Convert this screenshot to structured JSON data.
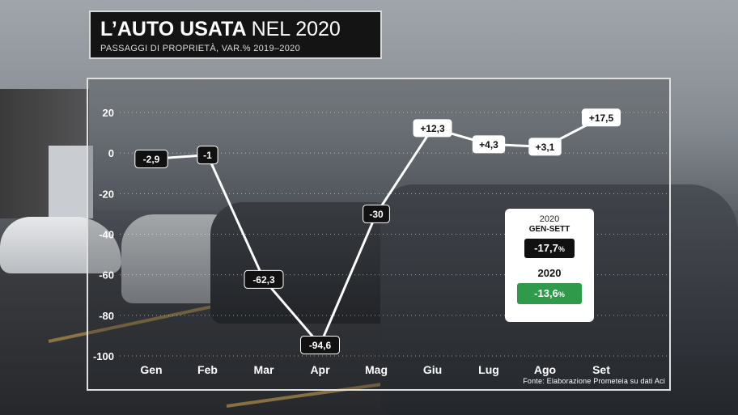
{
  "title": {
    "bold": "L’AUTO USATA",
    "light": "NEL 2020"
  },
  "subtitle": "PASSAGGI DI PROPRIETÀ, VAR.% 2019–2020",
  "source": "Fonte: Elaborazione Prometeia su dati Aci",
  "chart_data": {
    "type": "line",
    "categories": [
      "Gen",
      "Feb",
      "Mar",
      "Apr",
      "Mag",
      "Giu",
      "Lug",
      "Ago",
      "Set"
    ],
    "values": [
      -2.9,
      -1,
      -62.3,
      -94.6,
      -30,
      12.3,
      4.3,
      3.1,
      17.5
    ],
    "data_labels": [
      "-2,9",
      "-1",
      "-62,3",
      "-94,6",
      "-30",
      "+12,3",
      "+4,3",
      "+3,1",
      "+17,5"
    ],
    "label_styles": [
      "dark",
      "dark",
      "dark",
      "dark",
      "dark",
      "light",
      "light",
      "light",
      "light"
    ],
    "ylim": [
      -100,
      20
    ],
    "yticks": [
      20,
      0,
      -20,
      -40,
      -60,
      -80,
      -100
    ],
    "ytick_labels": [
      "20",
      "0",
      "-20",
      "-40",
      "-60",
      "-80",
      "-100"
    ],
    "grid": true,
    "xlabel": "",
    "ylabel": ""
  },
  "summary": {
    "year_1": "2020",
    "period": "GEN-SETT",
    "value_1": "-17,7",
    "value_1_unit": "%",
    "year_2": "2020",
    "value_2": "-13,6",
    "value_2_unit": "%"
  },
  "colors": {
    "line": "#ffffff",
    "label_dark_bg": "#111111",
    "label_light_bg": "#ffffff",
    "summary_green": "#2f9a4a",
    "title_bg": "#141414"
  }
}
